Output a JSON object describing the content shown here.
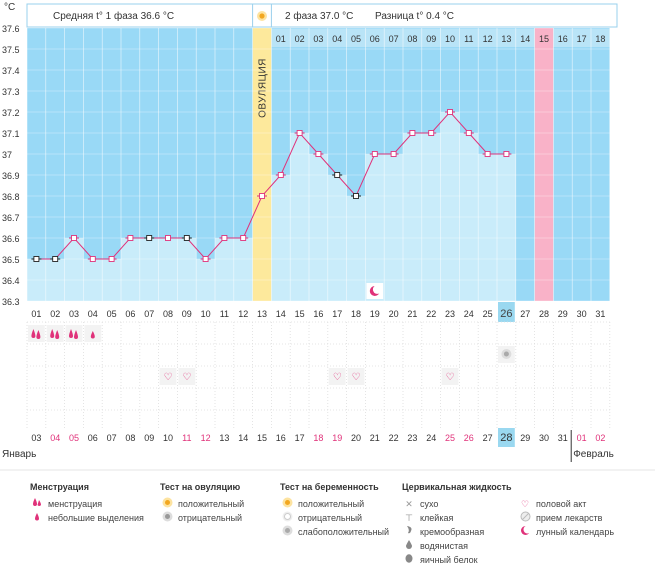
{
  "chart_data": {
    "type": "line",
    "y_axis_unit": "°C",
    "ylim": [
      36.3,
      37.6
    ],
    "y_ticks": [
      "37.6",
      "37.5",
      "37.4",
      "37.3",
      "37.2",
      "37.1",
      "37",
      "36.9",
      "36.8",
      "36.7",
      "36.6",
      "36.5",
      "36.4",
      "36.3"
    ],
    "header": {
      "phase1": "Средняя t° 1 фаза 36.6 °C",
      "phase2": "2 фаза 37.0 °C",
      "diff": "Разница t° 0.4 °C"
    },
    "ovulation_label": "ОВУЛЯЦИЯ",
    "cycle_day_labels": [
      "01",
      "02",
      "03",
      "04",
      "05",
      "06",
      "07",
      "08",
      "09",
      "10",
      "11",
      "12",
      "13",
      "14",
      "15",
      "16",
      "17",
      "18"
    ],
    "highlighted_cycle_day": "15",
    "x_day_labels": [
      "01",
      "02",
      "03",
      "04",
      "05",
      "06",
      "07",
      "08",
      "09",
      "10",
      "11",
      "12",
      "13",
      "14",
      "15",
      "16",
      "17",
      "18",
      "19",
      "20",
      "21",
      "22",
      "23",
      "24",
      "25",
      "26",
      "27",
      "28",
      "29",
      "30",
      "31"
    ],
    "today_day": "26",
    "ovulation_day": "13",
    "expected_period_day": "28",
    "temperatures": [
      36.5,
      36.5,
      36.6,
      36.5,
      36.5,
      36.6,
      36.6,
      36.6,
      36.6,
      36.5,
      36.6,
      36.6,
      36.8,
      36.9,
      37.1,
      37.0,
      36.9,
      36.8,
      37.0,
      37.0,
      37.1,
      37.1,
      37.2,
      37.1,
      37.0,
      37.0
    ],
    "excluded_point_days": [
      "01",
      "02",
      "07",
      "09",
      "17",
      "18"
    ],
    "moon_day": "19",
    "menstruation_days": [
      "01",
      "02",
      "03"
    ],
    "light_spotting_days": [
      "04"
    ],
    "negative_test_day": "26",
    "intercourse_days": [
      "08",
      "09",
      "17",
      "18",
      "23"
    ],
    "bottom_day_labels": [
      "03",
      "04",
      "05",
      "06",
      "07",
      "08",
      "09",
      "10",
      "11",
      "12",
      "13",
      "14",
      "15",
      "16",
      "17",
      "18",
      "19",
      "20",
      "21",
      "22",
      "23",
      "24",
      "25",
      "26",
      "27",
      "28",
      "29",
      "30",
      "31",
      "01",
      "02"
    ],
    "bottom_red_days": [
      "04",
      "05",
      "11",
      "12",
      "18",
      "19",
      "25",
      "26",
      "01",
      "02"
    ],
    "bottom_highlight_day": "28",
    "month_left": "Январь",
    "month_right": "Февраль",
    "colors": {
      "sky": "#99d9f6",
      "bar": "#c9ecfa",
      "ovulation": "#fde99c",
      "period_expected": "#f9b2c8",
      "line": "#e0327a",
      "highlight": "#9ad8f0"
    }
  },
  "legend": {
    "menstruation": {
      "title": "Менструация",
      "items": [
        "менструация",
        "небольшие выделения"
      ]
    },
    "ovulation_test": {
      "title": "Тест на овуляцию",
      "items": [
        "положительный",
        "отрицательный"
      ]
    },
    "pregnancy_test": {
      "title": "Тест на беременность",
      "items": [
        "положительный",
        "отрицательный",
        "слабоположительный"
      ]
    },
    "cervical": {
      "title": "Цервикальная жидкость",
      "items": [
        "сухо",
        "клейкая",
        "кремообразная",
        "водянистая",
        "яичный белок"
      ]
    },
    "other": {
      "items": [
        "половой акт",
        "прием лекарств",
        "лунный календарь"
      ]
    }
  }
}
